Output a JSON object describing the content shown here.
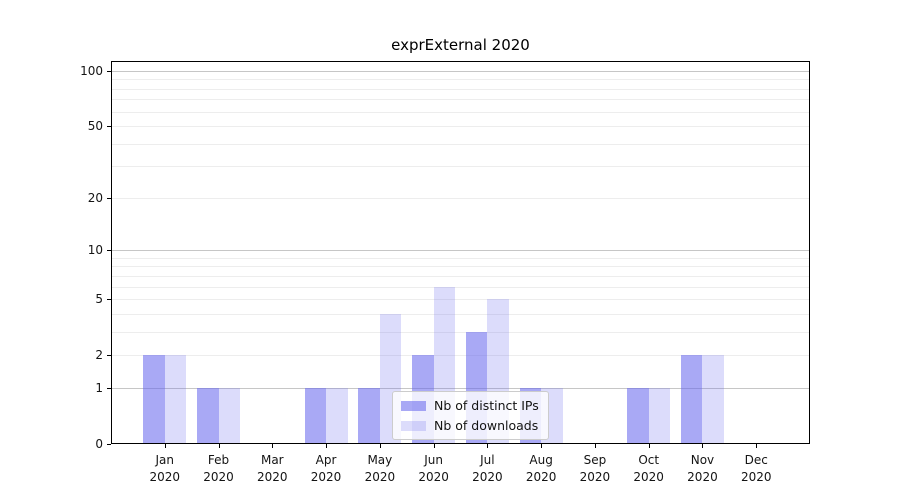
{
  "chart_data": {
    "type": "bar",
    "title": "exprExternal 2020",
    "categories": [
      "Jan 2020",
      "Feb 2020",
      "Mar 2020",
      "Apr 2020",
      "May 2020",
      "Jun 2020",
      "Jul 2020",
      "Aug 2020",
      "Sep 2020",
      "Oct 2020",
      "Nov 2020",
      "Dec 2020"
    ],
    "series": [
      {
        "name": "Nb of distinct IPs",
        "color": "rgba(102,102,238,0.56)",
        "values": [
          2,
          1,
          0,
          1,
          1,
          2,
          3,
          1,
          0,
          1,
          2,
          0
        ]
      },
      {
        "name": "Nb of downloads",
        "color": "rgba(102,102,238,0.23)",
        "values": [
          2,
          1,
          0,
          1,
          4,
          6,
          5,
          1,
          0,
          1,
          2,
          0
        ]
      }
    ],
    "xlabel": "",
    "ylabel": "",
    "yscale": "log1p",
    "ylim": [
      0,
      112
    ],
    "ytick_values": [
      0,
      1,
      2,
      5,
      10,
      20,
      50,
      100
    ],
    "major_grid_values": [
      1,
      10,
      100
    ],
    "minor_grid_values": [
      2,
      3,
      4,
      5,
      6,
      7,
      8,
      9,
      20,
      30,
      40,
      50,
      60,
      70,
      80,
      90
    ],
    "grid": "on",
    "legend_position": "lower center"
  },
  "colors": {
    "axis": "#000000",
    "major_grid": "#c6c6c6",
    "minor_grid": "#ededed",
    "legend_border": "#cccccc",
    "legend_background": "rgba(255,255,255,0.8)",
    "bar_base": "#6666ee"
  }
}
